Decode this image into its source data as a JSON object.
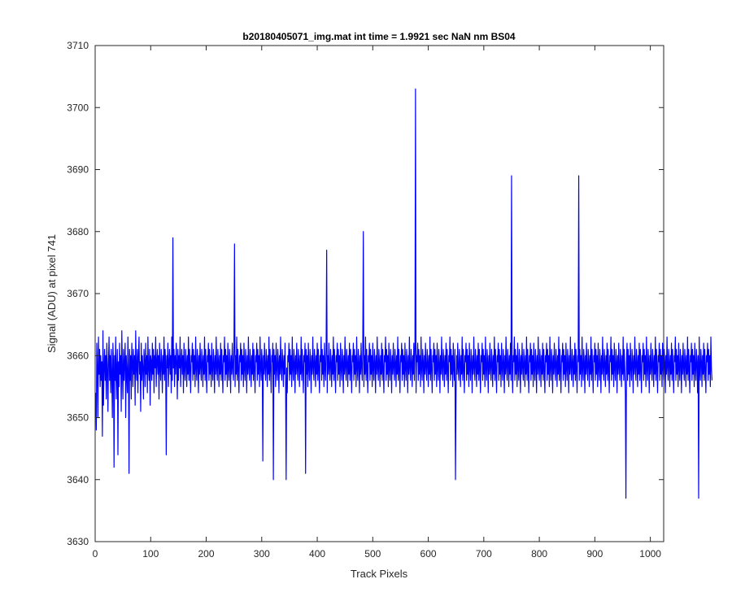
{
  "chart_data": {
    "type": "line",
    "title": "b20180405071_img.mat int time = 1.9921 sec  NaN nm BS04",
    "xlabel": "Track Pixels",
    "ylabel": "Signal (ADU) at pixel 741",
    "xlim": [
      0,
      1024
    ],
    "ylim": [
      3630,
      3710
    ],
    "xticks": [
      0,
      100,
      200,
      300,
      400,
      500,
      600,
      700,
      800,
      900,
      1000
    ],
    "yticks": [
      3630,
      3640,
      3650,
      3660,
      3670,
      3680,
      3690,
      3700,
      3710
    ],
    "grid": false,
    "legend": "none",
    "series": [
      {
        "color": "#0000ff",
        "x_start": 1,
        "x_step": 1,
        "values": [
          3654,
          3648,
          3662,
          3658,
          3650,
          3663,
          3657,
          3661,
          3655,
          3660,
          3656,
          3659,
          3647,
          3664,
          3652,
          3658,
          3661,
          3656,
          3660,
          3653,
          3662,
          3658,
          3651,
          3659,
          3663,
          3656,
          3660,
          3654,
          3661,
          3657,
          3650,
          3662,
          3659,
          3642,
          3660,
          3656,
          3663,
          3653,
          3658,
          3661,
          3644,
          3659,
          3655,
          3662,
          3657,
          3660,
          3651,
          3664,
          3658,
          3653,
          3661,
          3656,
          3659,
          3662,
          3650,
          3660,
          3657,
          3654,
          3663,
          3658,
          3641,
          3661,
          3656,
          3660,
          3653,
          3662,
          3659,
          3655,
          3661,
          3657,
          3660,
          3652,
          3664,
          3658,
          3656,
          3661,
          3654,
          3660,
          3663,
          3657,
          3659,
          3651,
          3662,
          3656,
          3660,
          3658,
          3653,
          3661,
          3659,
          3655,
          3662,
          3657,
          3660,
          3654,
          3663,
          3658,
          3656,
          3661,
          3652,
          3660,
          3659,
          3656,
          3662,
          3657,
          3661,
          3654,
          3660,
          3658,
          3663,
          3655,
          3659,
          3661,
          3657,
          3660,
          3653,
          3662,
          3658,
          3656,
          3661,
          3659,
          3654,
          3660,
          3657,
          3663,
          3656,
          3661,
          3659,
          3644,
          3660,
          3658,
          3662,
          3655,
          3659,
          3661,
          3657,
          3660,
          3654,
          3663,
          3656,
          3679,
          3658,
          3661,
          3655,
          3660,
          3657,
          3662,
          3659,
          3653,
          3661,
          3656,
          3660,
          3658,
          3663,
          3655,
          3659,
          3661,
          3657,
          3660,
          3654,
          3662,
          3658,
          3656,
          3661,
          3659,
          3655,
          3660,
          3657,
          3663,
          3656,
          3661,
          3658,
          3654,
          3660,
          3659,
          3662,
          3656,
          3661,
          3657,
          3660,
          3655,
          3663,
          3658,
          3656,
          3661,
          3659,
          3654,
          3660,
          3657,
          3662,
          3658,
          3656,
          3661,
          3659,
          3655,
          3660,
          3657,
          3663,
          3656,
          3661,
          3658,
          3654,
          3660,
          3659,
          3662,
          3656,
          3661,
          3657,
          3660,
          3655,
          3662,
          3658,
          3656,
          3661,
          3659,
          3654,
          3660,
          3657,
          3663,
          3658,
          3656,
          3661,
          3659,
          3655,
          3660,
          3657,
          3662,
          3656,
          3661,
          3658,
          3654,
          3660,
          3659,
          3663,
          3656,
          3661,
          3657,
          3660,
          3655,
          3662,
          3658,
          3656,
          3661,
          3659,
          3654,
          3660,
          3657,
          3662,
          3658,
          3656,
          3661,
          3678,
          3655,
          3660,
          3657,
          3663,
          3656,
          3661,
          3658,
          3654,
          3660,
          3659,
          3662,
          3656,
          3661,
          3657,
          3660,
          3655,
          3662,
          3658,
          3656,
          3661,
          3659,
          3654,
          3660,
          3657,
          3663,
          3658,
          3656,
          3661,
          3659,
          3655,
          3660,
          3657,
          3662,
          3656,
          3661,
          3658,
          3654,
          3660,
          3659,
          3662,
          3656,
          3661,
          3657,
          3660,
          3655,
          3663,
          3658,
          3656,
          3661,
          3659,
          3643,
          3660,
          3657,
          3662,
          3658,
          3656,
          3661,
          3659,
          3655,
          3660,
          3657,
          3663,
          3656,
          3661,
          3658,
          3654,
          3660,
          3659,
          3662,
          3640,
          3661,
          3657,
          3660,
          3655,
          3662,
          3658,
          3656,
          3661,
          3659,
          3654,
          3660,
          3657,
          3663,
          3658,
          3656,
          3661,
          3659,
          3655,
          3660,
          3657,
          3662,
          3656,
          3640,
          3658,
          3654,
          3660,
          3659,
          3662,
          3656,
          3661,
          3657,
          3660,
          3655,
          3663,
          3658,
          3656,
          3661,
          3659,
          3654,
          3660,
          3657,
          3662,
          3658,
          3656,
          3661,
          3659,
          3655,
          3660,
          3657,
          3663,
          3656,
          3661,
          3658,
          3654,
          3660,
          3659,
          3662,
          3641,
          3661,
          3657,
          3660,
          3655,
          3662,
          3658,
          3656,
          3661,
          3659,
          3654,
          3660,
          3657,
          3663,
          3658,
          3656,
          3661,
          3659,
          3655,
          3660,
          3657,
          3662,
          3656,
          3661,
          3658,
          3654,
          3660,
          3659,
          3663,
          3656,
          3661,
          3657,
          3660,
          3655,
          3662,
          3658,
          3656,
          3661,
          3677,
          3654,
          3660,
          3657,
          3662,
          3658,
          3656,
          3661,
          3659,
          3655,
          3660,
          3657,
          3663,
          3656,
          3661,
          3658,
          3654,
          3660,
          3659,
          3662,
          3656,
          3661,
          3657,
          3660,
          3655,
          3662,
          3658,
          3656,
          3661,
          3659,
          3654,
          3660,
          3657,
          3663,
          3658,
          3656,
          3661,
          3659,
          3655,
          3660,
          3657,
          3662,
          3656,
          3661,
          3658,
          3654,
          3660,
          3659,
          3662,
          3656,
          3661,
          3657,
          3660,
          3655,
          3663,
          3658,
          3656,
          3661,
          3659,
          3654,
          3660,
          3657,
          3662,
          3658,
          3656,
          3661,
          3680,
          3655,
          3660,
          3657,
          3663,
          3656,
          3661,
          3658,
          3654,
          3660,
          3659,
          3662,
          3656,
          3661,
          3657,
          3660,
          3655,
          3662,
          3658,
          3656,
          3661,
          3659,
          3654,
          3660,
          3657,
          3663,
          3658,
          3656,
          3661,
          3659,
          3655,
          3660,
          3657,
          3662,
          3656,
          3661,
          3658,
          3654,
          3660,
          3659,
          3663,
          3656,
          3661,
          3657,
          3660,
          3655,
          3662,
          3658,
          3656,
          3661,
          3659,
          3654,
          3660,
          3657,
          3662,
          3658,
          3656,
          3661,
          3659,
          3655,
          3660,
          3657,
          3663,
          3656,
          3661,
          3658,
          3654,
          3660,
          3659,
          3662,
          3656,
          3661,
          3657,
          3660,
          3655,
          3662,
          3658,
          3656,
          3661,
          3659,
          3654,
          3660,
          3657,
          3663,
          3658,
          3656,
          3661,
          3659,
          3655,
          3660,
          3657,
          3662,
          3656,
          3661,
          3703,
          3654,
          3660,
          3659,
          3662,
          3656,
          3661,
          3657,
          3660,
          3655,
          3663,
          3658,
          3656,
          3661,
          3659,
          3654,
          3660,
          3657,
          3662,
          3658,
          3656,
          3661,
          3659,
          3655,
          3660,
          3657,
          3663,
          3656,
          3661,
          3658,
          3654,
          3660,
          3659,
          3662,
          3656,
          3661,
          3657,
          3660,
          3655,
          3662,
          3658,
          3656,
          3661,
          3659,
          3654,
          3660,
          3657,
          3663,
          3658,
          3656,
          3661,
          3659,
          3655,
          3660,
          3657,
          3662,
          3656,
          3661,
          3658,
          3654,
          3660,
          3659,
          3663,
          3656,
          3661,
          3657,
          3660,
          3655,
          3662,
          3658,
          3656,
          3661,
          3640,
          3654,
          3660,
          3657,
          3662,
          3658,
          3656,
          3661,
          3659,
          3655,
          3660,
          3657,
          3663,
          3656,
          3661,
          3658,
          3654,
          3660,
          3659,
          3662,
          3656,
          3661,
          3657,
          3660,
          3655,
          3662,
          3658,
          3656,
          3661,
          3659,
          3654,
          3660,
          3657,
          3663,
          3658,
          3656,
          3661,
          3659,
          3655,
          3660,
          3657,
          3662,
          3656,
          3661,
          3658,
          3654,
          3660,
          3659,
          3662,
          3656,
          3661,
          3657,
          3660,
          3655,
          3663,
          3658,
          3656,
          3661,
          3659,
          3654,
          3660,
          3657,
          3662,
          3658,
          3656,
          3661,
          3659,
          3655,
          3660,
          3657,
          3663,
          3656,
          3661,
          3658,
          3654,
          3660,
          3659,
          3662,
          3656,
          3661,
          3657,
          3660,
          3655,
          3662,
          3658,
          3656,
          3661,
          3659,
          3654,
          3660,
          3657,
          3663,
          3658,
          3656,
          3661,
          3659,
          3655,
          3660,
          3657,
          3662,
          3656,
          3689,
          3658,
          3654,
          3660,
          3659,
          3663,
          3656,
          3661,
          3657,
          3660,
          3655,
          3662,
          3658,
          3656,
          3661,
          3659,
          3654,
          3660,
          3657,
          3662,
          3658,
          3656,
          3661,
          3659,
          3655,
          3660,
          3657,
          3663,
          3656,
          3661,
          3658,
          3654,
          3660,
          3659,
          3662,
          3656,
          3661,
          3657,
          3660,
          3655,
          3662,
          3658,
          3656,
          3661,
          3659,
          3654,
          3660,
          3657,
          3663,
          3658,
          3656,
          3661,
          3659,
          3655,
          3660,
          3657,
          3662,
          3656,
          3661,
          3658,
          3654,
          3660,
          3659,
          3662,
          3656,
          3661,
          3657,
          3660,
          3655,
          3663,
          3658,
          3656,
          3661,
          3659,
          3654,
          3660,
          3657,
          3662,
          3658,
          3656,
          3661,
          3659,
          3655,
          3660,
          3657,
          3663,
          3656,
          3661,
          3658,
          3654,
          3660,
          3659,
          3662,
          3656,
          3661,
          3657,
          3660,
          3655,
          3662,
          3658,
          3656,
          3661,
          3659,
          3654,
          3660,
          3657,
          3663,
          3658,
          3656,
          3661,
          3659,
          3655,
          3660,
          3657,
          3662,
          3656,
          3661,
          3658,
          3654,
          3660,
          3659,
          3689,
          3656,
          3661,
          3657,
          3660,
          3655,
          3663,
          3658,
          3656,
          3661,
          3659,
          3654,
          3660,
          3657,
          3662,
          3658,
          3656,
          3661,
          3659,
          3655,
          3660,
          3657,
          3663,
          3656,
          3661,
          3658,
          3654,
          3660,
          3659,
          3662,
          3656,
          3661,
          3657,
          3660,
          3655,
          3662,
          3658,
          3656,
          3661,
          3659,
          3654,
          3660,
          3657,
          3663,
          3658,
          3656,
          3661,
          3659,
          3655,
          3660,
          3657,
          3662,
          3656,
          3661,
          3658,
          3654,
          3660,
          3659,
          3663,
          3656,
          3661,
          3657,
          3660,
          3655,
          3662,
          3658,
          3656,
          3661,
          3659,
          3654,
          3660,
          3657,
          3662,
          3658,
          3656,
          3661,
          3659,
          3655,
          3660,
          3657,
          3663,
          3656,
          3661,
          3658,
          3654,
          3637,
          3659,
          3662,
          3656,
          3661,
          3657,
          3660,
          3655,
          3662,
          3658,
          3656,
          3661,
          3659,
          3654,
          3660,
          3657,
          3663,
          3658,
          3656,
          3661,
          3659,
          3655,
          3660,
          3657,
          3662,
          3656,
          3661,
          3658,
          3654,
          3660,
          3659,
          3662,
          3656,
          3661,
          3657,
          3660,
          3655,
          3663,
          3658,
          3656,
          3661,
          3659,
          3654,
          3660,
          3657,
          3662,
          3658,
          3656,
          3661,
          3659,
          3655,
          3660,
          3657,
          3663,
          3656,
          3661,
          3658,
          3654,
          3660,
          3659,
          3662,
          3656,
          3661,
          3657,
          3660,
          3655,
          3662,
          3658,
          3656,
          3661,
          3659,
          3654,
          3660,
          3657,
          3663,
          3658,
          3656,
          3661,
          3659,
          3655,
          3660,
          3657,
          3662,
          3656,
          3661,
          3658,
          3654,
          3660,
          3659,
          3663,
          3656,
          3661,
          3657,
          3660,
          3655,
          3662,
          3658,
          3656,
          3661,
          3659,
          3654,
          3660,
          3657,
          3662,
          3658,
          3656,
          3661,
          3659,
          3655,
          3660,
          3657,
          3663,
          3656,
          3661,
          3658,
          3654,
          3660,
          3659,
          3662,
          3656,
          3661,
          3657,
          3660,
          3655,
          3662,
          3658,
          3656,
          3661,
          3659,
          3654,
          3660,
          3637,
          3663,
          3658,
          3656,
          3661,
          3659,
          3655,
          3660,
          3657,
          3662,
          3656,
          3661,
          3658,
          3654,
          3660,
          3659,
          3662,
          3656,
          3661,
          3657,
          3660,
          3655,
          3663,
          3658,
          3656
        ]
      }
    ]
  }
}
